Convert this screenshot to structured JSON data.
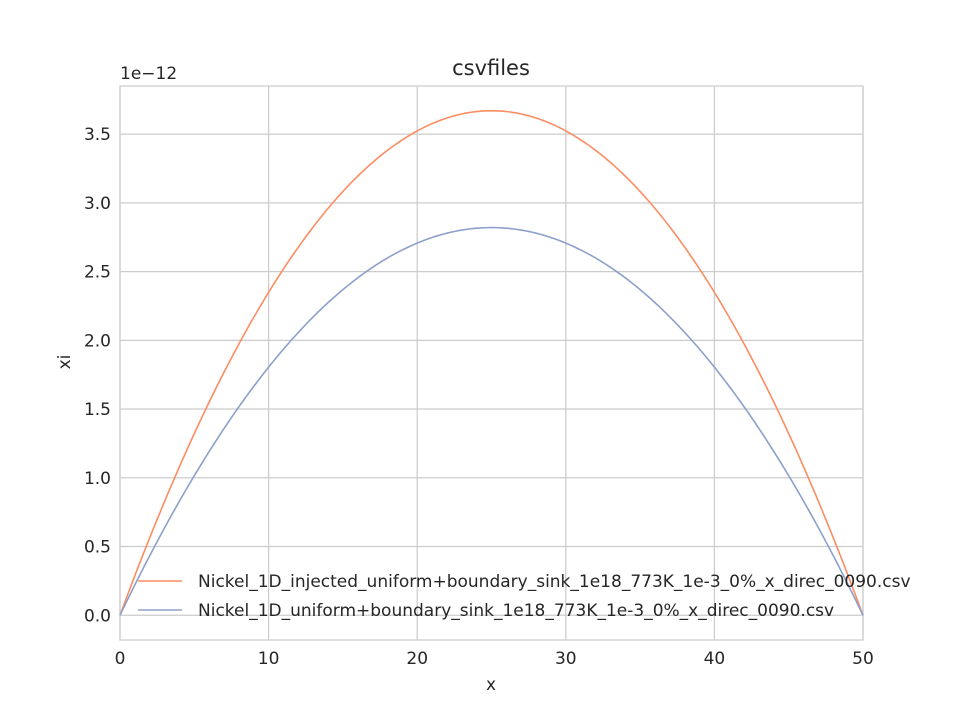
{
  "chart_data": {
    "type": "line",
    "title": "csvfiles",
    "xlabel": "x",
    "ylabel": "xi",
    "y_offset_label": "1e−12",
    "xlim": [
      0,
      50
    ],
    "ylim": [
      -0.18,
      3.85
    ],
    "x_ticks": [
      0,
      10,
      20,
      30,
      40,
      50
    ],
    "x_tick_labels": [
      "0",
      "10",
      "20",
      "30",
      "40",
      "50"
    ],
    "y_ticks": [
      0.0,
      0.5,
      1.0,
      1.5,
      2.0,
      2.5,
      3.0,
      3.5
    ],
    "y_tick_labels": [
      "0.0",
      "0.5",
      "1.0",
      "1.5",
      "2.0",
      "2.5",
      "3.0",
      "3.5"
    ],
    "grid": true,
    "legend_position": "lower-left",
    "series": [
      {
        "name": "Nickel_1D_injected_uniform+boundary_sink_1e18_773K_1e-3_0%_x_direc_0090.csv",
        "color": "#fc8d62",
        "x": [
          0,
          5,
          10,
          15,
          20,
          25,
          30,
          35,
          40,
          45,
          50
        ],
        "values": [
          0.0,
          1.38,
          2.35,
          3.04,
          3.52,
          3.67,
          3.52,
          3.04,
          2.35,
          1.38,
          0.0
        ]
      },
      {
        "name": "Nickel_1D_uniform+boundary_sink_1e18_773K_1e-3_0%_x_direc_0090.csv",
        "color": "#8da0cb",
        "x": [
          0,
          5,
          10,
          15,
          20,
          25,
          30,
          35,
          40,
          45,
          50
        ],
        "values": [
          0.0,
          1.02,
          1.8,
          2.36,
          2.71,
          2.82,
          2.71,
          2.36,
          1.8,
          1.02,
          0.0
        ]
      }
    ]
  }
}
